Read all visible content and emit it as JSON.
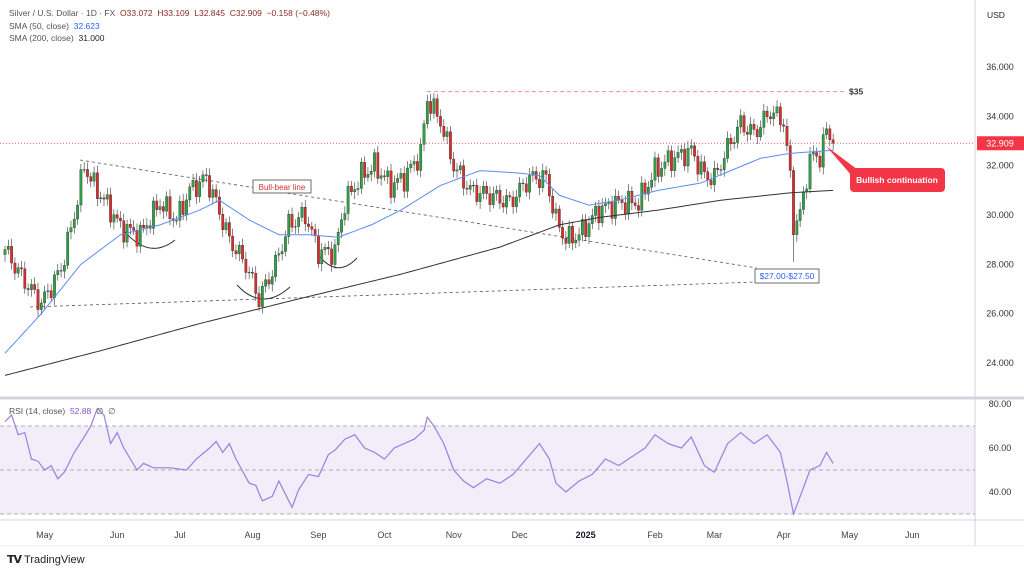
{
  "header": {
    "symbol": "Silver / U.S. Dollar · 1D · FX",
    "open": "O33.072",
    "high": "H33.109",
    "low": "L32.845",
    "close": "C32.909",
    "change": "−0.158 (−0.48%)",
    "sma50_label": "SMA (50, close)",
    "sma50_value": "32.623",
    "sma200_label": "SMA (200, close)",
    "sma200_value": "31.000",
    "currency": "USD"
  },
  "rsi_legend": {
    "label": "RSI (14, close)",
    "value": "52.88",
    "extra1": "∅",
    "extra2": "∅"
  },
  "branding": "TradingView",
  "colors": {
    "up": "#2f9e44",
    "down": "#d62f2f",
    "sma50": "#5b8def",
    "sma200": "#333333",
    "rsi": "#9a7fdc",
    "annotation_red": "#f23645",
    "annotation_blue": "#2962ff"
  },
  "chart_data": {
    "type": "candlestick",
    "title": "Silver / U.S. Dollar · 1D · FX",
    "ylabel": "USD",
    "ylim": [
      23,
      37.5
    ],
    "yticks": [
      "24.000",
      "26.000",
      "28.000",
      "30.000",
      "32.000",
      "34.000",
      "36.000"
    ],
    "ytick_values": [
      24,
      26,
      28,
      30,
      32,
      34,
      36
    ],
    "xticks": [
      "May",
      "Jun",
      "Jul",
      "Aug",
      "Sep",
      "Oct",
      "Nov",
      "Dec",
      "2025",
      "Feb",
      "Mar",
      "Apr",
      "May",
      "Jun"
    ],
    "xtick_days": [
      12,
      34,
      53,
      75,
      95,
      115,
      136,
      156,
      176,
      197,
      215,
      236,
      256,
      275
    ],
    "xlim_days": [
      0,
      294
    ],
    "last_price": 32.909,
    "last_price_label": "32.909",
    "close_keypoints": [
      [
        0,
        28.6
      ],
      [
        5,
        27.5
      ],
      [
        11,
        26.4
      ],
      [
        17,
        27.8
      ],
      [
        21,
        30
      ],
      [
        24,
        32
      ],
      [
        27,
        31.2
      ],
      [
        32,
        30.2
      ],
      [
        35,
        29.5
      ],
      [
        41,
        29.2
      ],
      [
        47,
        30.5
      ],
      [
        52,
        29.8
      ],
      [
        56,
        31
      ],
      [
        61,
        31.5
      ],
      [
        64,
        30.5
      ],
      [
        68,
        29
      ],
      [
        73,
        28
      ],
      [
        77,
        26.6
      ],
      [
        82,
        28
      ],
      [
        86,
        29.6
      ],
      [
        91,
        30
      ],
      [
        95,
        28.5
      ],
      [
        100,
        28.5
      ],
      [
        103,
        30.5
      ],
      [
        108,
        31.6
      ],
      [
        112,
        32
      ],
      [
        117,
        31.2
      ],
      [
        121,
        31.5
      ],
      [
        126,
        32.5
      ],
      [
        128,
        34.7
      ],
      [
        132,
        33.8
      ],
      [
        136,
        32
      ],
      [
        141,
        31
      ],
      [
        147,
        30.8
      ],
      [
        153,
        30.5
      ],
      [
        159,
        31.5
      ],
      [
        164,
        31.5
      ],
      [
        167,
        29.8
      ],
      [
        170,
        29
      ],
      [
        174,
        29.2
      ],
      [
        180,
        30.2
      ],
      [
        186,
        30.5
      ],
      [
        192,
        30.5
      ],
      [
        197,
        31.8
      ],
      [
        201,
        32.2
      ],
      [
        208,
        32.6
      ],
      [
        212,
        31.6
      ],
      [
        215,
        31.5
      ],
      [
        220,
        33
      ],
      [
        223,
        33.7
      ],
      [
        227,
        33.3
      ],
      [
        232,
        34.2
      ],
      [
        236,
        33.8
      ],
      [
        238,
        31.5
      ],
      [
        239,
        29.6
      ],
      [
        241,
        30
      ],
      [
        244,
        32.3
      ],
      [
        247,
        32.4
      ],
      [
        249,
        33.4
      ],
      [
        251,
        32.909
      ]
    ],
    "series": [
      {
        "name": "SMA (50, close)",
        "points": [
          [
            0,
            24.4
          ],
          [
            11,
            26
          ],
          [
            23,
            28
          ],
          [
            35,
            29.2
          ],
          [
            47,
            29.6
          ],
          [
            59,
            30.2
          ],
          [
            65,
            30.6
          ],
          [
            74,
            29.8
          ],
          [
            83,
            29.2
          ],
          [
            92,
            29.2
          ],
          [
            101,
            29.1
          ],
          [
            111,
            29.6
          ],
          [
            120,
            30.2
          ],
          [
            132,
            31.2
          ],
          [
            144,
            31.8
          ],
          [
            156,
            31.7
          ],
          [
            162,
            31.6
          ],
          [
            168,
            30.8
          ],
          [
            177,
            30.4
          ],
          [
            186,
            30.6
          ],
          [
            198,
            31
          ],
          [
            211,
            31.3
          ],
          [
            220,
            31.8
          ],
          [
            229,
            32.3
          ],
          [
            238,
            32.5
          ],
          [
            251,
            32.623
          ]
        ]
      },
      {
        "name": "SMA (200, close)",
        "points": [
          [
            0,
            23.5
          ],
          [
            29,
            24.5
          ],
          [
            59,
            25.6
          ],
          [
            89,
            26.6
          ],
          [
            120,
            27.6
          ],
          [
            150,
            28.7
          ],
          [
            168,
            29.6
          ],
          [
            180,
            29.9
          ],
          [
            198,
            30.2
          ],
          [
            217,
            30.6
          ],
          [
            238,
            30.9
          ],
          [
            251,
            31.0
          ]
        ]
      }
    ],
    "annotations": {
      "resistance_label": "$35",
      "resistance_value": 35,
      "bull_bear_label": "Bull-bear line",
      "support_label": "$27.00-$27.50",
      "callout_label": "Bullish continuation"
    },
    "rsi": {
      "ylim": [
        25,
        82
      ],
      "yticks": [
        "40.00",
        "60.00",
        "80.00"
      ],
      "ytick_values": [
        40,
        60,
        80
      ],
      "band": [
        30,
        70
      ],
      "mid": 50,
      "points": [
        [
          0,
          72
        ],
        [
          2,
          75
        ],
        [
          4,
          66
        ],
        [
          6,
          67
        ],
        [
          8,
          55
        ],
        [
          10,
          54
        ],
        [
          12,
          50
        ],
        [
          14,
          52
        ],
        [
          16,
          46
        ],
        [
          18,
          49
        ],
        [
          21,
          58
        ],
        [
          24,
          65
        ],
        [
          26,
          70
        ],
        [
          28,
          78
        ],
        [
          30,
          75
        ],
        [
          32,
          62
        ],
        [
          34,
          67
        ],
        [
          36,
          60
        ],
        [
          38,
          55
        ],
        [
          40,
          50
        ],
        [
          42,
          53
        ],
        [
          45,
          51
        ],
        [
          50,
          51
        ],
        [
          55,
          50
        ],
        [
          58,
          55
        ],
        [
          62,
          60
        ],
        [
          64,
          63
        ],
        [
          66,
          58
        ],
        [
          68,
          62
        ],
        [
          70,
          55
        ],
        [
          74,
          44
        ],
        [
          76,
          43
        ],
        [
          78,
          36
        ],
        [
          81,
          38
        ],
        [
          83,
          45
        ],
        [
          85,
          39
        ],
        [
          87,
          33
        ],
        [
          89,
          41
        ],
        [
          92,
          48
        ],
        [
          95,
          47
        ],
        [
          98,
          57
        ],
        [
          100,
          59
        ],
        [
          103,
          64
        ],
        [
          106,
          66
        ],
        [
          109,
          60
        ],
        [
          112,
          58
        ],
        [
          115,
          55
        ],
        [
          118,
          60
        ],
        [
          121,
          62
        ],
        [
          124,
          64
        ],
        [
          127,
          68
        ],
        [
          128,
          74
        ],
        [
          130,
          70
        ],
        [
          133,
          62
        ],
        [
          136,
          50
        ],
        [
          139,
          45
        ],
        [
          142,
          42
        ],
        [
          146,
          46
        ],
        [
          150,
          44
        ],
        [
          154,
          48
        ],
        [
          158,
          55
        ],
        [
          162,
          62
        ],
        [
          165,
          55
        ],
        [
          167,
          44
        ],
        [
          170,
          40
        ],
        [
          174,
          45
        ],
        [
          178,
          48
        ],
        [
          182,
          55
        ],
        [
          186,
          52
        ],
        [
          190,
          56
        ],
        [
          194,
          60
        ],
        [
          197,
          66
        ],
        [
          201,
          62
        ],
        [
          205,
          60
        ],
        [
          208,
          65
        ],
        [
          212,
          52
        ],
        [
          215,
          49
        ],
        [
          219,
          62
        ],
        [
          223,
          67
        ],
        [
          227,
          62
        ],
        [
          231,
          66
        ],
        [
          235,
          58
        ],
        [
          237,
          45
        ],
        [
          239,
          30
        ],
        [
          241,
          38
        ],
        [
          244,
          50
        ],
        [
          247,
          52
        ],
        [
          249,
          58
        ],
        [
          251,
          53
        ]
      ]
    }
  }
}
